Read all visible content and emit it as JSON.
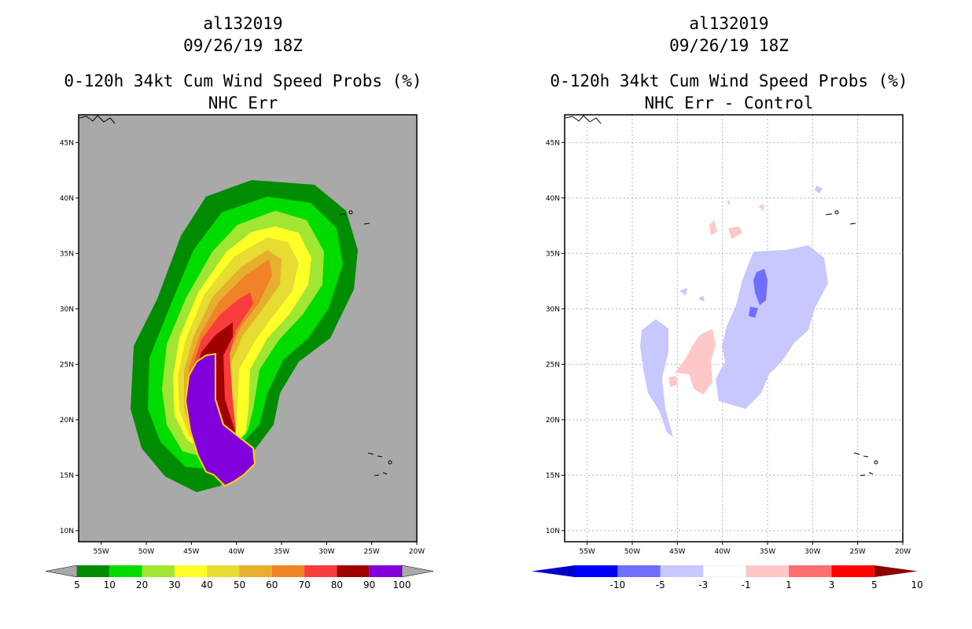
{
  "chart_data": [
    {
      "type": "contour-map",
      "storm_id": "al132019",
      "date": "09/26/19 18Z",
      "title": "0-120h 34kt Cum Wind Speed Probs (%)",
      "subtitle": "NHC Err",
      "x_ticks": [
        "55W",
        "50W",
        "45W",
        "40W",
        "35W",
        "30W",
        "25W",
        "20W"
      ],
      "y_ticks": [
        "45N",
        "40N",
        "35N",
        "30N",
        "25N",
        "20N",
        "15N",
        "10N"
      ],
      "xlim": [
        -57.5,
        -20
      ],
      "ylim": [
        9,
        47.5
      ],
      "grid": false,
      "colorbar": {
        "labels": [
          "5",
          "10",
          "20",
          "30",
          "40",
          "50",
          "60",
          "70",
          "80",
          "90",
          "100"
        ],
        "colors": [
          "#008c00",
          "#00dc00",
          "#a0e632",
          "#ffff28",
          "#e6dc32",
          "#e6af2d",
          "#f08228",
          "#fa3c3c",
          "#a00000",
          "#8200dc"
        ]
      },
      "contour_levels": [
        5,
        10,
        20,
        30,
        40,
        50,
        60,
        70,
        80,
        90,
        100
      ]
    },
    {
      "type": "contour-map",
      "storm_id": "al132019",
      "date": "09/26/19 18Z",
      "title": "0-120h 34kt Cum Wind Speed Probs (%)",
      "subtitle": "NHC Err - Control",
      "x_ticks": [
        "55W",
        "50W",
        "45W",
        "40W",
        "35W",
        "30W",
        "25W",
        "20W"
      ],
      "y_ticks": [
        "45N",
        "40N",
        "35N",
        "30N",
        "25N",
        "20N",
        "15N",
        "10N"
      ],
      "xlim": [
        -57.5,
        -20
      ],
      "ylim": [
        9,
        47.5
      ],
      "grid": true,
      "colorbar": {
        "labels": [
          "-10",
          "-5",
          "-3",
          "-1",
          "1",
          "3",
          "5",
          "10"
        ],
        "colors": [
          "#0000c8",
          "#0000ff",
          "#6e6eff",
          "#c8c8ff",
          "#ffffff",
          "#ffc8c8",
          "#ff6e6e",
          "#ff0000",
          "#8c0000"
        ]
      },
      "contour_levels": [
        -10,
        -5,
        -3,
        -1,
        1,
        3,
        5,
        10
      ]
    }
  ]
}
